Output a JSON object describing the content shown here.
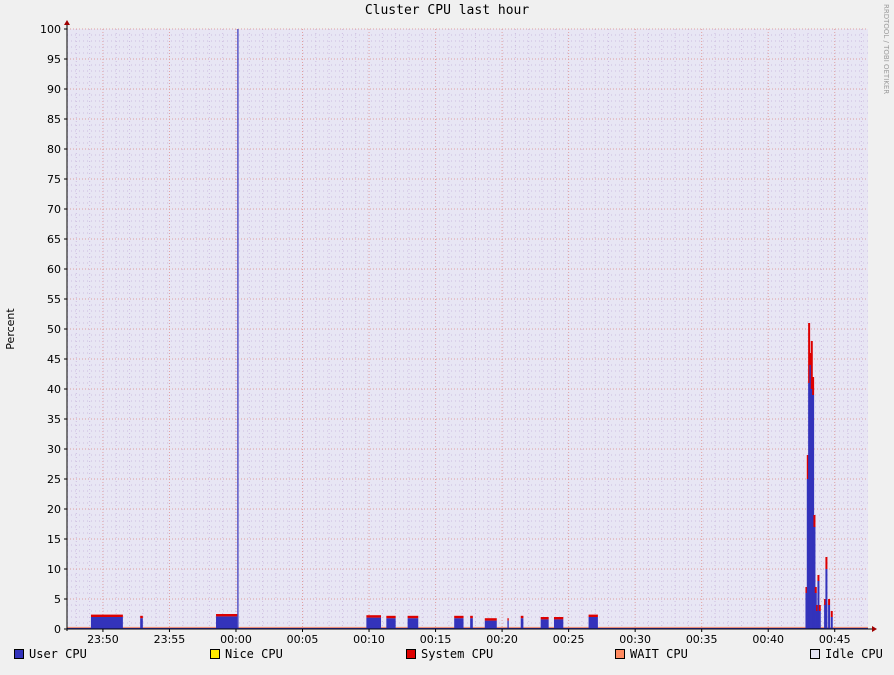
{
  "chart_data": {
    "type": "area",
    "title": "Cluster CPU last hour",
    "ylabel": "Percent",
    "xlabel": "",
    "watermark": "RRDTOOL / TOBI OETIKER",
    "ylim": [
      0,
      100
    ],
    "y_ticks": [
      0,
      5,
      10,
      15,
      20,
      25,
      30,
      35,
      40,
      45,
      50,
      55,
      60,
      65,
      70,
      75,
      80,
      85,
      90,
      95,
      100
    ],
    "x_range_minutes": [
      -12.7,
      47.5
    ],
    "x_ticks": [
      {
        "minute": -10,
        "label": "23:50"
      },
      {
        "minute": -5,
        "label": "23:55"
      },
      {
        "minute": 0,
        "label": "00:00"
      },
      {
        "minute": 5,
        "label": "00:05"
      },
      {
        "minute": 10,
        "label": "00:10"
      },
      {
        "minute": 15,
        "label": "00:15"
      },
      {
        "minute": 20,
        "label": "00:20"
      },
      {
        "minute": 25,
        "label": "00:25"
      },
      {
        "minute": 30,
        "label": "00:30"
      },
      {
        "minute": 35,
        "label": "00:35"
      },
      {
        "minute": 40,
        "label": "00:40"
      },
      {
        "minute": 45,
        "label": "00:45"
      }
    ],
    "grid": true,
    "legend_position": "bottom",
    "colors": {
      "plot_background": "#e8e6f4",
      "minor_grid": "#cdbde0",
      "major_grid": "#e0a0a0",
      "axis": "#000000",
      "arrow": "#a00000",
      "page_background": "#f0f0f0"
    },
    "series": [
      {
        "name": "User CPU",
        "color": "#3333bb"
      },
      {
        "name": "Nice CPU",
        "color": "#ffea00"
      },
      {
        "name": "System CPU",
        "color": "#dd0000"
      },
      {
        "name": "WAIT CPU",
        "color": "#ff8a60"
      },
      {
        "name": "Idle CPU",
        "color": "#e2e2f2"
      }
    ],
    "baseline_user": 0.2,
    "user_segments": [
      {
        "start": -10.9,
        "end": -8.5,
        "value": 2.0
      },
      {
        "start": -7.2,
        "end": -7.0,
        "value": 1.8
      },
      {
        "start": -1.5,
        "end": 0.1,
        "value": 2.1
      },
      {
        "start": 9.8,
        "end": 10.9,
        "value": 1.9
      },
      {
        "start": 11.3,
        "end": 12.0,
        "value": 1.8
      },
      {
        "start": 12.9,
        "end": 13.7,
        "value": 1.8
      },
      {
        "start": 16.4,
        "end": 17.1,
        "value": 1.8
      },
      {
        "start": 17.6,
        "end": 17.8,
        "value": 1.8
      },
      {
        "start": 18.7,
        "end": 19.6,
        "value": 1.4
      },
      {
        "start": 20.4,
        "end": 20.5,
        "value": 1.4
      },
      {
        "start": 21.4,
        "end": 21.6,
        "value": 1.8
      },
      {
        "start": 22.9,
        "end": 23.5,
        "value": 1.6
      },
      {
        "start": 23.9,
        "end": 24.6,
        "value": 1.6
      },
      {
        "start": 26.5,
        "end": 27.2,
        "value": 2.0
      }
    ],
    "spikes": [
      {
        "minute": 0.1,
        "user": 100,
        "system": 0
      },
      {
        "minute": 42.8,
        "user": 6,
        "system": 1
      },
      {
        "minute": 42.9,
        "user": 25,
        "system": 4
      },
      {
        "minute": 43.0,
        "user": 41,
        "system": 10
      },
      {
        "minute": 43.1,
        "user": 44,
        "system": 2
      },
      {
        "minute": 43.2,
        "user": 40,
        "system": 8
      },
      {
        "minute": 43.3,
        "user": 39,
        "system": 3
      },
      {
        "minute": 43.4,
        "user": 17,
        "system": 2
      },
      {
        "minute": 43.5,
        "user": 6,
        "system": 1
      },
      {
        "minute": 43.6,
        "user": 3,
        "system": 1
      },
      {
        "minute": 43.7,
        "user": 8,
        "system": 1
      },
      {
        "minute": 43.8,
        "user": 3,
        "system": 1
      },
      {
        "minute": 44.2,
        "user": 4,
        "system": 1
      },
      {
        "minute": 44.3,
        "user": 10,
        "system": 2
      },
      {
        "minute": 44.5,
        "user": 4,
        "system": 1
      },
      {
        "minute": 44.7,
        "user": 2,
        "system": 1
      }
    ]
  }
}
